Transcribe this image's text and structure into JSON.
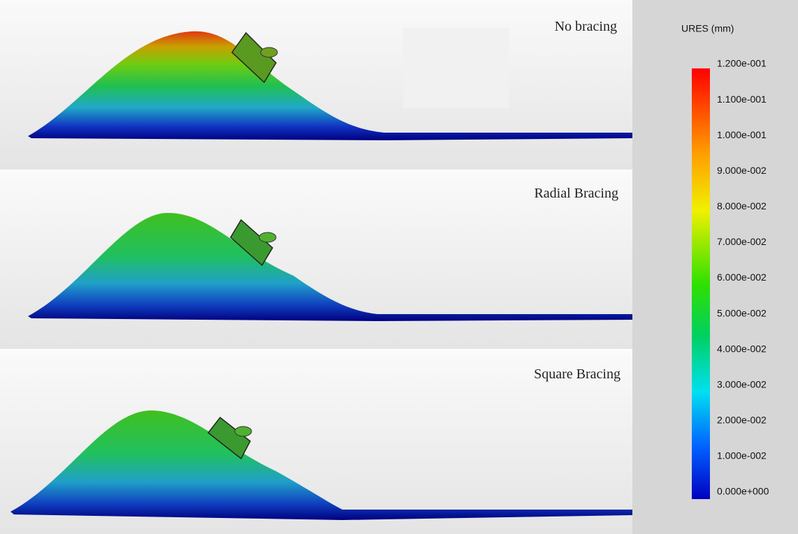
{
  "panels": [
    {
      "label": "No bracing"
    },
    {
      "label": "Radial Bracing"
    },
    {
      "label": "Square Bracing"
    }
  ],
  "legend": {
    "title": "URES (mm)",
    "labels": [
      "1.200e-001",
      "1.100e-001",
      "1.000e-001",
      "9.000e-002",
      "8.000e-002",
      "7.000e-002",
      "6.000e-002",
      "5.000e-002",
      "4.000e-002",
      "3.000e-002",
      "2.000e-002",
      "1.000e-002",
      "0.000e+000"
    ]
  }
}
